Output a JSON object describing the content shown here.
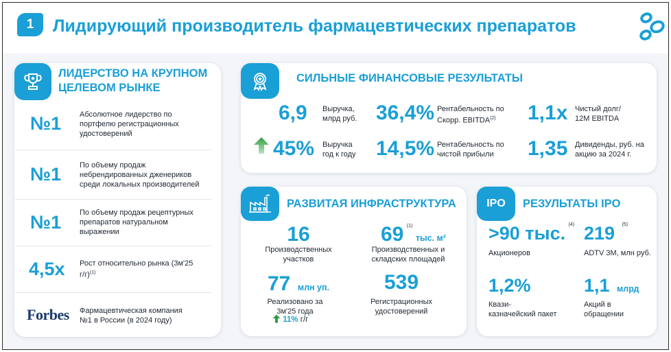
{
  "header": {
    "badge": "1",
    "title": "Лидирующий производитель фармацевтических препаратов"
  },
  "leadership": {
    "title": "ЛИДЕРСТВО НА КРУПНОМ ЦЕЛЕВОМ РЫНКЕ",
    "items": [
      {
        "value": "№1",
        "text": "Абсолютное лидерство по портфелю регистрационных удостоверений"
      },
      {
        "value": "№1",
        "text": "По объему продаж небрендированных дженериков среди локальных производителей"
      },
      {
        "value": "№1",
        "text": "По объему продаж рецептурных препаратов натуральном выражении"
      },
      {
        "value": "4,5x",
        "text": "Рост относительно рынка (3м'25 г/г)",
        "note": "(1)"
      },
      {
        "value": "Forbes",
        "text": "Фармацевтическая компания №1 в России (в 2024 году)"
      }
    ]
  },
  "financial": {
    "title": "СИЛЬНЫЕ ФИНАНСОВЫЕ РЕЗУЛЬТАТЫ",
    "metrics": [
      {
        "value": "6,9",
        "label": "Выручка, млрд руб."
      },
      {
        "value": "36,4%",
        "label": "Рентабельность по Скорр. EBITDA",
        "note": "(2)"
      },
      {
        "value": "1,1x",
        "label": "Чистый долг/ 12M EBITDA"
      },
      {
        "value": "45%",
        "label": "Выручка год к году"
      },
      {
        "value": "14,5%",
        "label": "Рентабельность по чистой прибыли"
      },
      {
        "value": "1,35",
        "label": "Дивиденды, руб. на акцию за 2024 г."
      }
    ]
  },
  "infrastructure": {
    "title": "РАЗВИТАЯ ИНФРАСТРУКТУРА",
    "m1": {
      "value": "16",
      "label": "Производственных участков"
    },
    "m2": {
      "value": "69",
      "unit": "тыс. м²",
      "note": "(1)",
      "label": "Производственных и складских площадей"
    },
    "m3": {
      "value": "77",
      "unit": "млн уп.",
      "label": "Реализовано за 3м'25 года",
      "growth": "11%",
      "growth_suffix": "г/г"
    },
    "m4": {
      "value": "539",
      "label": "Регистрационных удостоверений"
    }
  },
  "ipo": {
    "badge": "IPO",
    "title": "РЕЗУЛЬТАТЫ IPO",
    "m1": {
      "value": ">90 тыс.",
      "note": "(4)",
      "label": "Акционеров"
    },
    "m2": {
      "value": "219",
      "note": "(5)",
      "label": "ADTV 3M, млн руб."
    },
    "m3": {
      "value": "1,2%",
      "label": "Квази-казначейский пакет"
    },
    "m4": {
      "value": "1,1",
      "unit": "млрд",
      "label": "Акций в обращении"
    }
  },
  "colors": {
    "accent": "#1a9fd6",
    "growth": "#2e9e3e",
    "text": "#1e2630"
  },
  "icons": [
    "trophy-icon",
    "award-ribbon-icon",
    "factory-icon",
    "arrow-up-icon",
    "company-logo-icon"
  ]
}
